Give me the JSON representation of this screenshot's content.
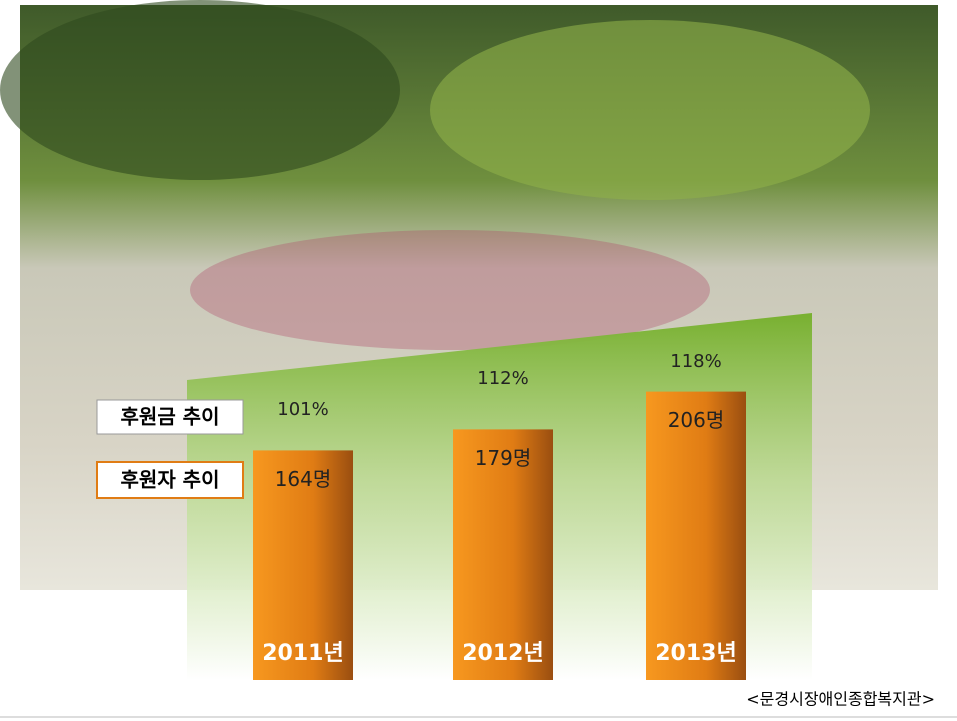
{
  "chart_data": {
    "type": "bar",
    "categories": [
      "2011년",
      "2012년",
      "2013년"
    ],
    "series": [
      {
        "name": "후원자 추이",
        "color": "#f0901e",
        "values": [
          164,
          179,
          206
        ],
        "value_labels": [
          "164명",
          "179명",
          "206명"
        ]
      },
      {
        "name": "후원금 추이",
        "values": [
          101,
          112,
          118
        ],
        "value_labels": [
          "101%",
          "112%",
          "118%"
        ]
      }
    ],
    "source": "<문경시장애인종합복지관>"
  }
}
